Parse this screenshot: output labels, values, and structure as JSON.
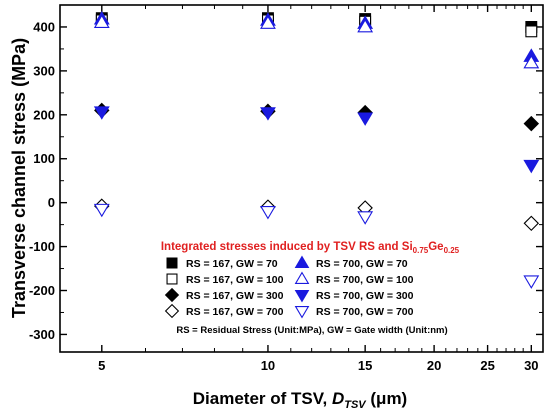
{
  "chart_data": {
    "type": "scatter",
    "xlabel": {
      "main": "Diameter of TSV, ",
      "sym": "D",
      "sub": "TSV",
      "unit": " (μm)"
    },
    "ylabel": "Transverse channel stress (MPa)",
    "xscale": "log",
    "xlim": [
      4.2,
      31.5
    ],
    "ylim": [
      -340,
      450
    ],
    "xticks_major": [
      5,
      10,
      15,
      20,
      25,
      30
    ],
    "xticks_minor": [
      6,
      7,
      8,
      9,
      11,
      12,
      13,
      14,
      16,
      17,
      18,
      19,
      21,
      22,
      23,
      24,
      26,
      27,
      28,
      29
    ],
    "yticks": [
      -300,
      -200,
      -100,
      0,
      100,
      200,
      300,
      400
    ],
    "grid": false,
    "legend_position": "lower-center",
    "colors": {
      "black": "#000000",
      "blue": "#1a1adf",
      "annotation_red": "#e02020"
    },
    "annotation": {
      "title_parts": [
        {
          "text": "Integrated stresses induced by TSV RS and Si",
          "kind": "normal"
        },
        {
          "text": "0.75",
          "kind": "sub"
        },
        {
          "text": "Ge",
          "kind": "normal"
        },
        {
          "text": "0.25",
          "kind": "sub"
        }
      ],
      "note": "RS = Residual Stress (Unit:MPa), GW = Gate width (Unit:nm)"
    },
    "series": [
      {
        "name": "RS = 167, GW = 70",
        "marker": "square",
        "fill": "filled",
        "color": "#000000",
        "x": [
          5,
          10,
          15,
          30
        ],
        "y": [
          420,
          420,
          418,
          400
        ]
      },
      {
        "name": "RS = 167, GW = 100",
        "marker": "square",
        "fill": "open",
        "color": "#000000",
        "x": [
          5,
          10,
          15,
          30
        ],
        "y": [
          415,
          415,
          412,
          390
        ]
      },
      {
        "name": "RS = 167, GW = 300",
        "marker": "diamond",
        "fill": "filled",
        "color": "#000000",
        "x": [
          5,
          10,
          15,
          30
        ],
        "y": [
          210,
          208,
          205,
          180
        ]
      },
      {
        "name": "RS = 167, GW = 700",
        "marker": "diamond",
        "fill": "open",
        "color": "#000000",
        "x": [
          5,
          10,
          15,
          30
        ],
        "y": [
          -8,
          -10,
          -12,
          -47
        ]
      },
      {
        "name": "RS = 700, GW = 70",
        "marker": "triangle-up",
        "fill": "filled",
        "color": "#1a1adf",
        "x": [
          5,
          10,
          15,
          30
        ],
        "y": [
          418,
          415,
          408,
          333
        ]
      },
      {
        "name": "RS = 700, GW = 100",
        "marker": "triangle-up",
        "fill": "open",
        "color": "#1a1adf",
        "x": [
          5,
          10,
          15,
          30
        ],
        "y": [
          410,
          408,
          400,
          318
        ]
      },
      {
        "name": "RS = 700, GW = 300",
        "marker": "triangle-down",
        "fill": "filled",
        "color": "#1a1adf",
        "x": [
          5,
          10,
          15,
          30
        ],
        "y": [
          207,
          205,
          193,
          85
        ]
      },
      {
        "name": "RS = 700, GW = 700",
        "marker": "triangle-down",
        "fill": "open",
        "color": "#1a1adf",
        "x": [
          5,
          10,
          15,
          30
        ],
        "y": [
          -15,
          -20,
          -32,
          -178
        ]
      }
    ]
  }
}
